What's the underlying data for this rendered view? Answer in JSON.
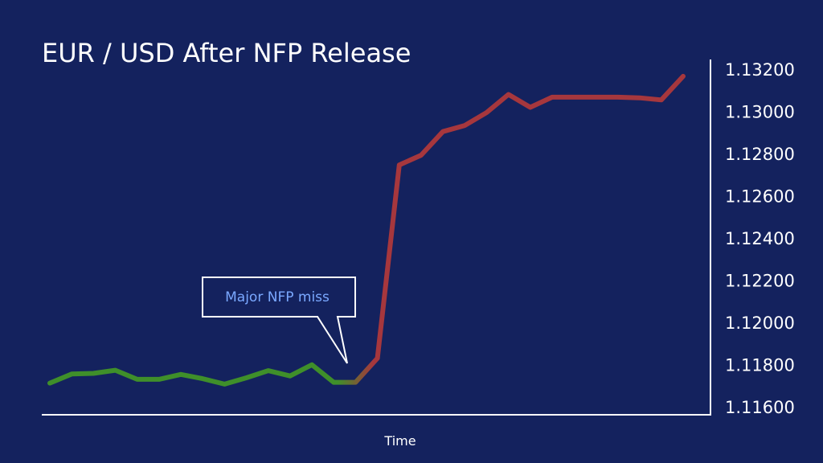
{
  "chart_data": {
    "type": "line",
    "title": "EUR / USD After NFP Release",
    "xlabel": "Time",
    "ylabel": "",
    "ylim": [
      1.116,
      1.132
    ],
    "yticks": [
      "1.13200",
      "1.13000",
      "1.12800",
      "1.12600",
      "1.12400",
      "1.12200",
      "1.12000",
      "1.11800",
      "1.11600"
    ],
    "grid": false,
    "legend": "none",
    "series": [
      {
        "color_before": "#3f8f2a",
        "color_after": "#a6373d",
        "y": [
          1.11712,
          1.11755,
          1.11758,
          1.11773,
          1.1173,
          1.1173,
          1.11753,
          1.11733,
          1.11707,
          1.11737,
          1.11771,
          1.11746,
          1.11799,
          1.11716,
          1.11716,
          1.1183,
          1.12746,
          1.12792,
          1.12904,
          1.12933,
          1.12994,
          1.1308,
          1.13019,
          1.13067,
          1.13067,
          1.13067,
          1.13067,
          1.13064,
          1.13054,
          1.13166
        ]
      }
    ],
    "annotations": [
      {
        "text": "Major NFP miss",
        "point_index": 14
      }
    ]
  }
}
